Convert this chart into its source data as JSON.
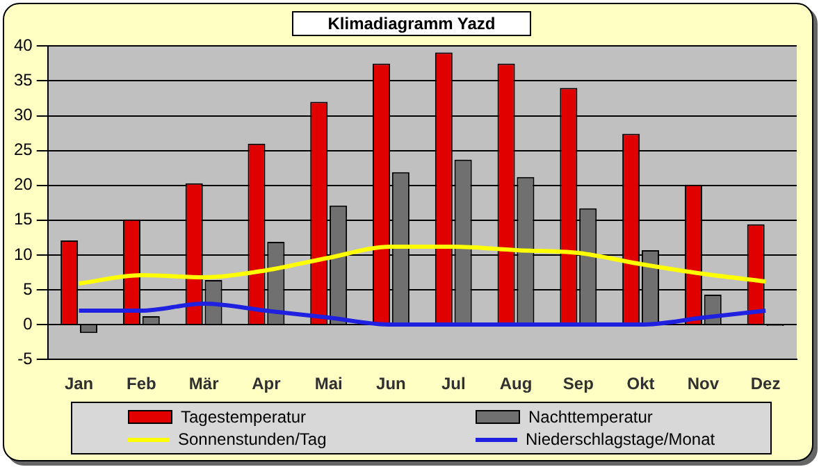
{
  "chart_data": {
    "type": "bar",
    "title": "Klimadiagramm Yazd",
    "categories": [
      "Jan",
      "Feb",
      "Mär",
      "Apr",
      "Mai",
      "Jun",
      "Jul",
      "Aug",
      "Sep",
      "Okt",
      "Nov",
      "Dez"
    ],
    "series": [
      {
        "name": "Tagestemperatur",
        "color": "#e00000",
        "values": [
          12.1,
          15.1,
          20.3,
          26.0,
          32.0,
          37.5,
          39.1,
          37.5,
          34.0,
          27.4,
          20.1,
          14.4
        ]
      },
      {
        "name": "Nachttemperatur",
        "color": "#707070",
        "values": [
          -1.2,
          1.2,
          6.4,
          11.9,
          17.1,
          21.9,
          23.7,
          21.2,
          16.7,
          10.7,
          4.3,
          -0.2
        ]
      },
      {
        "name": "Sonnenstunden/Tag",
        "type": "line",
        "color": "#ffff00",
        "values": [
          5.9,
          7.1,
          6.8,
          7.8,
          9.6,
          11.2,
          11.2,
          10.7,
          10.3,
          8.7,
          7.3,
          6.2
        ]
      },
      {
        "name": "Niederschlagstage/Monat",
        "type": "line",
        "color": "#2020e0",
        "values": [
          2,
          2,
          3,
          2,
          1,
          0,
          0,
          0,
          0,
          0,
          1,
          2
        ]
      }
    ],
    "ylim": [
      -5,
      40
    ],
    "yticks": [
      -5,
      0,
      5,
      10,
      15,
      20,
      25,
      30,
      35,
      40
    ],
    "grid": "y",
    "legend": "bottom",
    "marker": "none"
  }
}
